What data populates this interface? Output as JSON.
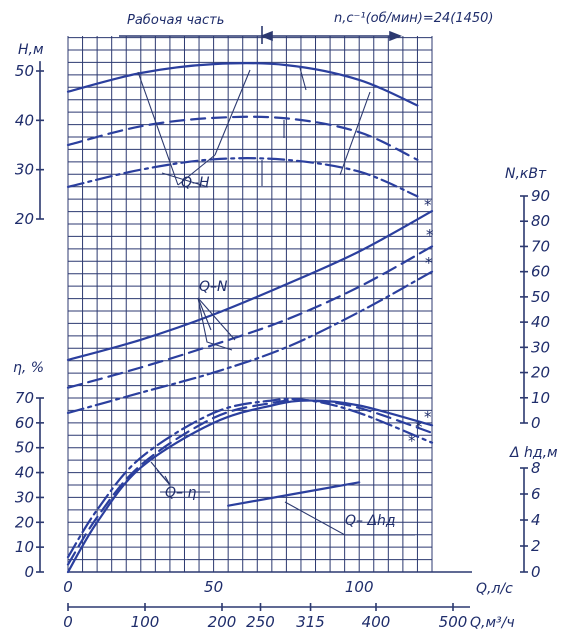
{
  "chart_data": {
    "type": "line",
    "header": {
      "working_range_label": "Рабочая часть",
      "speed_label": "n,c⁻¹(об/мин)=24(1450)"
    },
    "x_axis": {
      "label": "Q,л/с",
      "ticks": [
        0,
        50,
        100
      ],
      "range": [
        0,
        125
      ],
      "secondary": {
        "label": "Q,м³/ч",
        "ticks": [
          0,
          100,
          200,
          250,
          315,
          400,
          500
        ]
      }
    },
    "y_axes": {
      "H": {
        "label": "H,м",
        "ticks": [
          20,
          30,
          40,
          50
        ],
        "range": [
          20,
          53
        ]
      },
      "N": {
        "label": "N,кВт",
        "ticks": [
          0,
          10,
          20,
          30,
          40,
          50,
          60,
          70,
          80,
          90
        ],
        "range": [
          0,
          90
        ]
      },
      "eta": {
        "label": "η, %",
        "ticks": [
          0,
          10,
          20,
          30,
          40,
          50,
          60,
          70
        ],
        "range": [
          0,
          70
        ]
      },
      "dh": {
        "label": "Δ hд,м",
        "ticks": [
          0,
          2,
          4,
          6,
          8
        ],
        "range": [
          0,
          8
        ]
      }
    },
    "series": [
      {
        "name": "Q–H",
        "axis": "H",
        "style": "solid",
        "x": [
          0,
          25,
          50,
          75,
          100,
          120
        ],
        "y": [
          45.8,
          49.6,
          51.4,
          51.2,
          48.2,
          43.0
        ]
      },
      {
        "name": "Q–H",
        "axis": "H",
        "style": "dashed",
        "x": [
          0,
          25,
          50,
          75,
          100,
          120
        ],
        "y": [
          35.0,
          38.8,
          40.5,
          40.4,
          37.6,
          32.0
        ]
      },
      {
        "name": "Q–H",
        "axis": "H",
        "style": "dashdot",
        "x": [
          0,
          25,
          50,
          75,
          100,
          120
        ],
        "y": [
          26.5,
          30.0,
          32.1,
          32.0,
          29.6,
          24.6
        ]
      },
      {
        "name": "Q–N",
        "axis": "N",
        "style": "solid",
        "x": [
          0,
          25,
          50,
          75,
          100,
          125
        ],
        "y": [
          25,
          33,
          43,
          55,
          68,
          84
        ]
      },
      {
        "name": "Q–N",
        "axis": "N",
        "style": "dashed",
        "x": [
          0,
          25,
          50,
          75,
          100,
          125
        ],
        "y": [
          14,
          22,
          31,
          41,
          54,
          70
        ]
      },
      {
        "name": "Q–N",
        "axis": "N",
        "style": "dashdot",
        "x": [
          0,
          25,
          50,
          75,
          100,
          125
        ],
        "y": [
          4,
          12,
          20,
          30,
          44,
          60
        ]
      },
      {
        "name": "Q–η",
        "axis": "eta",
        "style": "solid",
        "x": [
          0,
          10,
          25,
          50,
          70,
          83,
          100,
          125
        ],
        "y": [
          0,
          20,
          42,
          60,
          67,
          69,
          67,
          59
        ]
      },
      {
        "name": "Q–η",
        "axis": "eta",
        "style": "dashed",
        "x": [
          0,
          10,
          25,
          50,
          70,
          83,
          100,
          125
        ],
        "y": [
          3,
          22,
          43,
          62,
          68,
          69,
          66,
          56
        ]
      },
      {
        "name": "Q–η",
        "axis": "eta",
        "style": "dashdot",
        "x": [
          0,
          10,
          25,
          50,
          70,
          83,
          100,
          125
        ],
        "y": [
          6,
          25,
          46,
          64,
          69,
          69,
          64,
          52
        ]
      },
      {
        "name": "Q–Δhд",
        "axis": "dh",
        "style": "solid",
        "x": [
          55,
          100
        ],
        "y": [
          5.1,
          6.9
        ]
      }
    ],
    "annotations": [
      "Q–H",
      "Q–N",
      "Q– η",
      "Q– Δhд"
    ]
  }
}
